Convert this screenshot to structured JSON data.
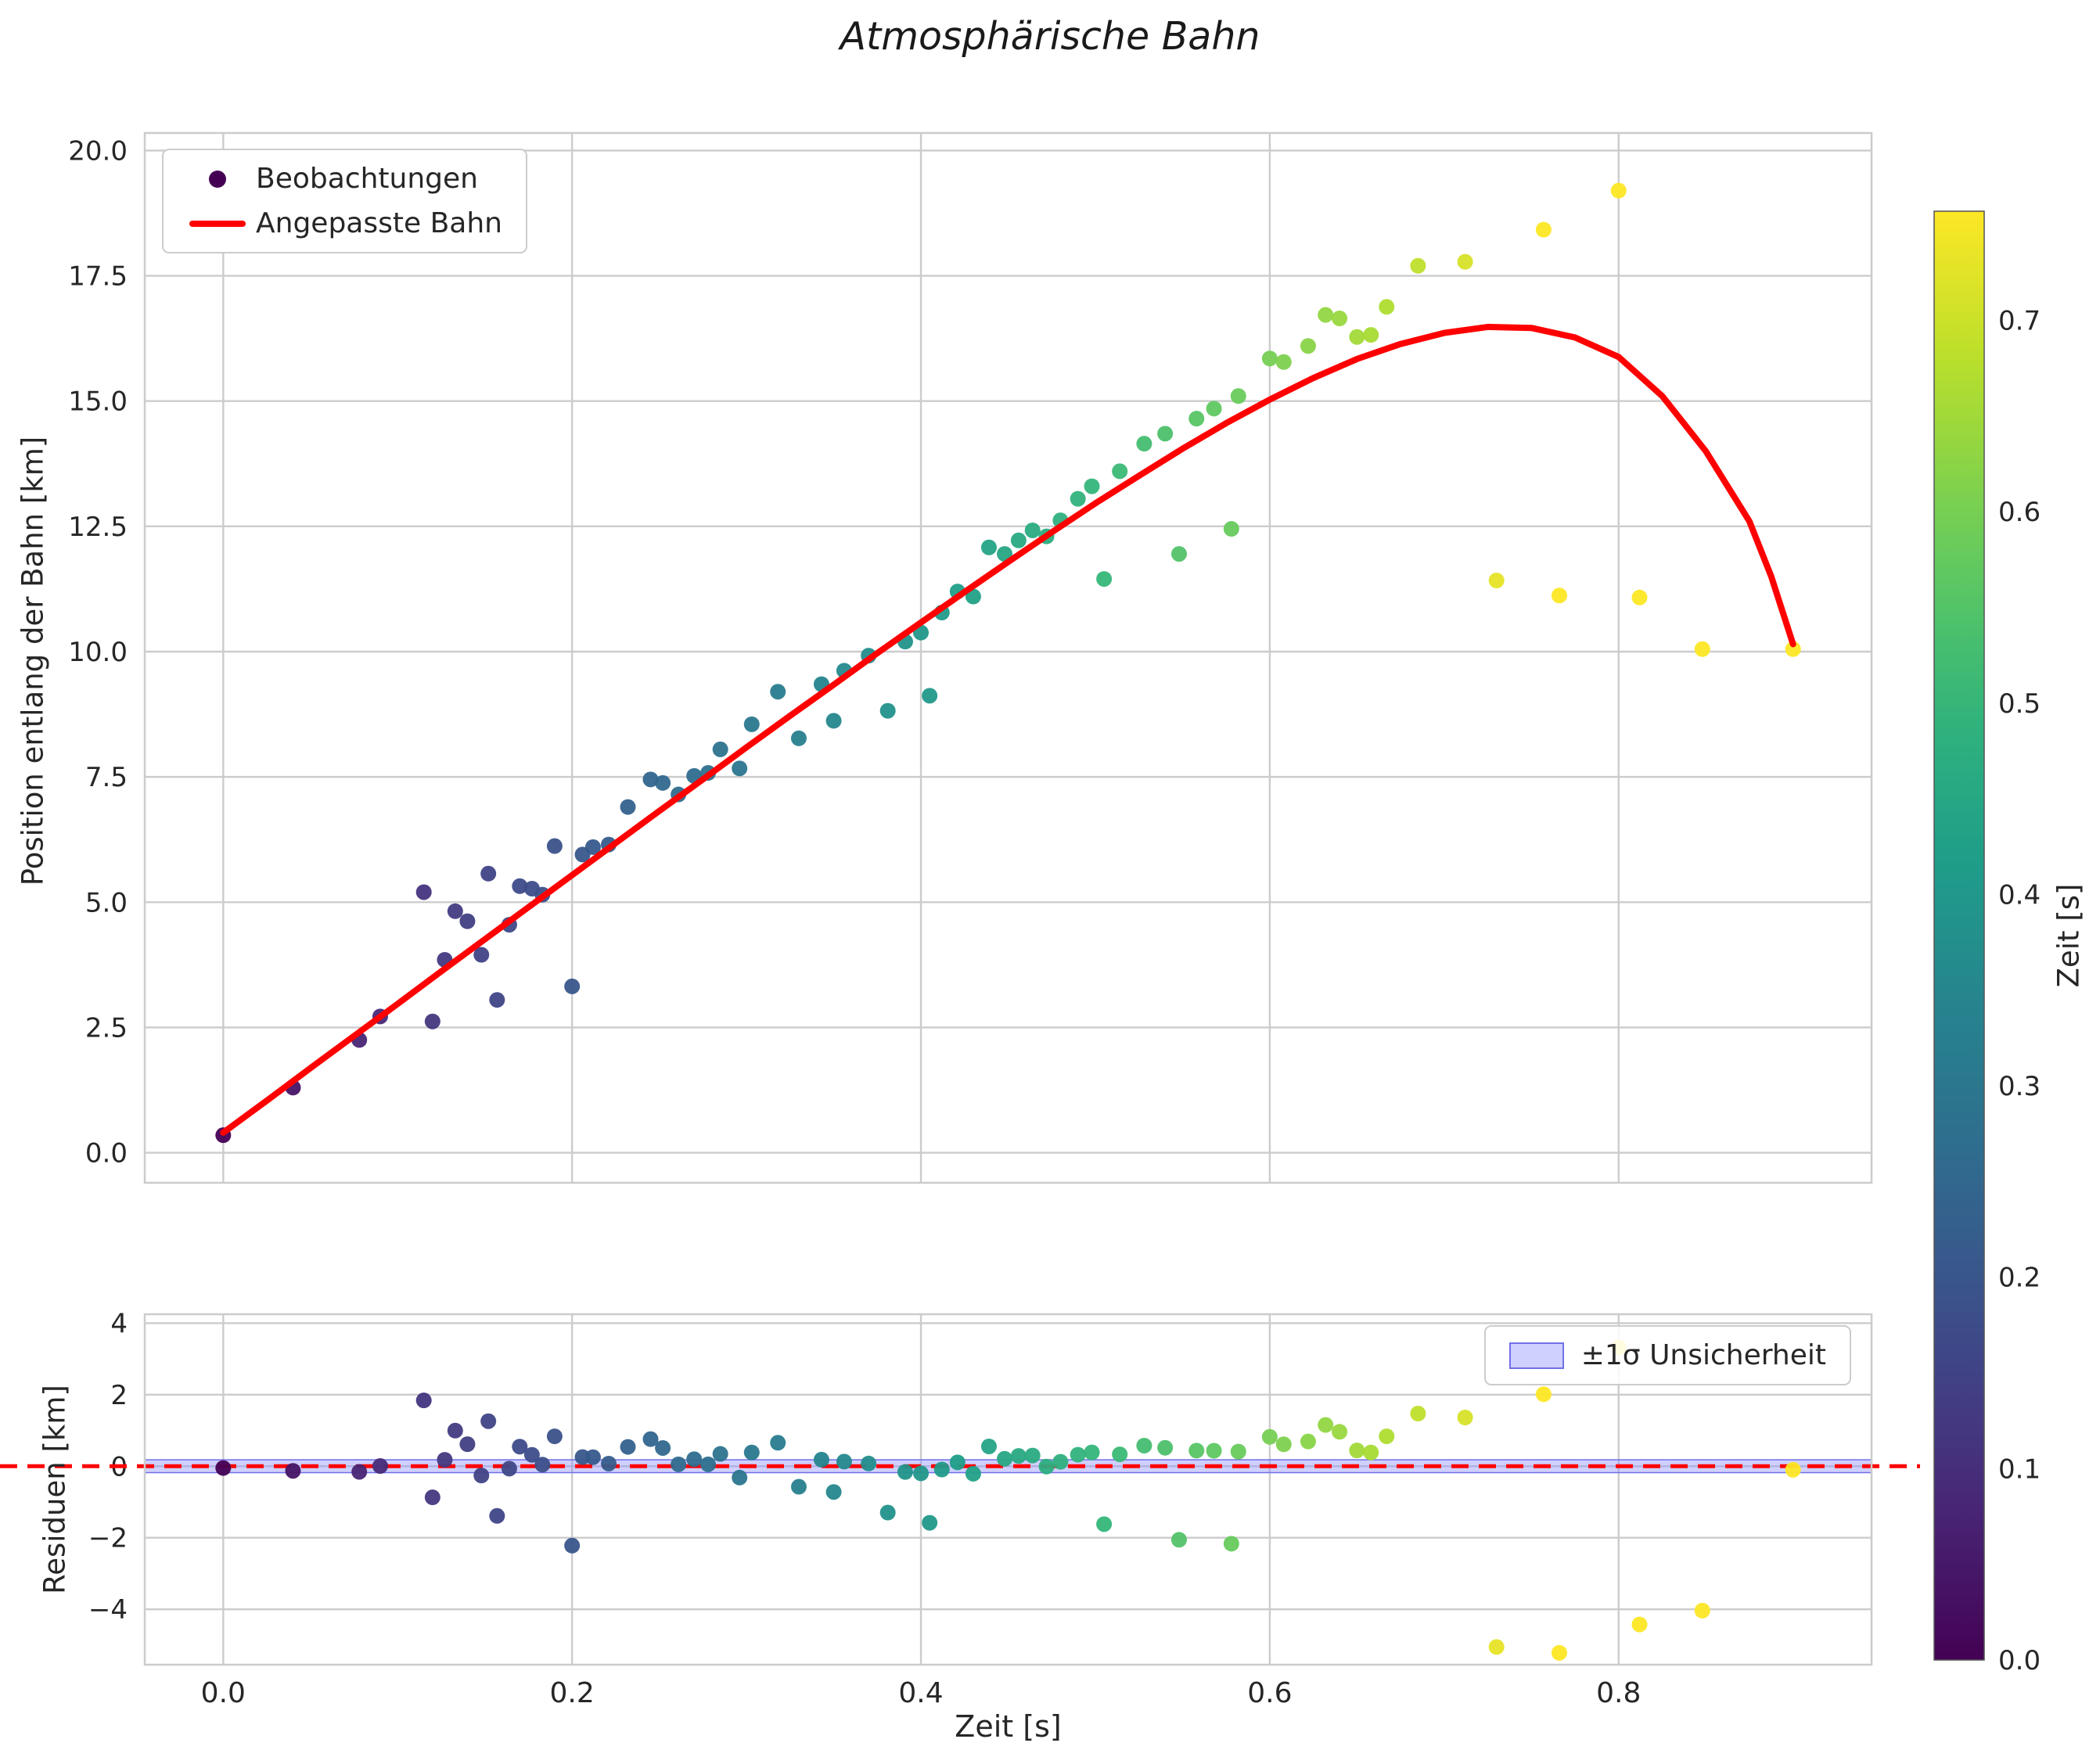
{
  "title": "Atmosphärische Bahn",
  "colors": {
    "fit_line": "#ff0000",
    "zero_line": "#ff0000",
    "grid": "#cccccc",
    "spine": "#cccccc",
    "text": "#262626",
    "title_text": "#1a1a1a",
    "observation_marker": "#440154",
    "band_fill_rgba": "rgba(132,132,255,0.38)",
    "band_edge": "#7070e8",
    "colorbar_outline": "#555555"
  },
  "chart_data": [
    {
      "id": "trajectory",
      "type": "scatter",
      "title": "Atmosphärische Bahn",
      "xlabel": "Zeit [s]",
      "ylabel": "Position entlang der Bahn [km]",
      "xlim": [
        -0.045,
        0.945
      ],
      "ylim": [
        -0.6,
        20.35
      ],
      "xticks": [
        0.0,
        0.2,
        0.4,
        0.6,
        0.8
      ],
      "xtick_labels": [
        "0.0",
        "0.2",
        "0.4",
        "0.6",
        "0.8"
      ],
      "yticks": [
        0.0,
        2.5,
        5.0,
        7.5,
        10.0,
        12.5,
        15.0,
        17.5,
        20.0
      ],
      "ytick_labels": [
        "0.0",
        "2.5",
        "5.0",
        "7.5",
        "10.0",
        "12.5",
        "15.0",
        "17.5",
        "20.0"
      ],
      "grid": true,
      "legend": [
        {
          "label": "Beobachtungen",
          "marker": "dot"
        },
        {
          "label": "Angepasste Bahn",
          "marker": "line"
        }
      ],
      "legend_position": "upper left",
      "points": [
        [
          0.0,
          0.35
        ],
        [
          0.04,
          1.3
        ],
        [
          0.078,
          2.25
        ],
        [
          0.09,
          2.72
        ],
        [
          0.115,
          5.2
        ],
        [
          0.12,
          2.62
        ],
        [
          0.127,
          3.85
        ],
        [
          0.133,
          4.82
        ],
        [
          0.14,
          4.62
        ],
        [
          0.148,
          3.95
        ],
        [
          0.152,
          5.57
        ],
        [
          0.157,
          3.05
        ],
        [
          0.164,
          4.55
        ],
        [
          0.17,
          5.32
        ],
        [
          0.177,
          5.27
        ],
        [
          0.183,
          5.15
        ],
        [
          0.19,
          6.12
        ],
        [
          0.2,
          3.32
        ],
        [
          0.206,
          5.95
        ],
        [
          0.212,
          6.1
        ],
        [
          0.221,
          6.15
        ],
        [
          0.232,
          6.9
        ],
        [
          0.245,
          7.45
        ],
        [
          0.252,
          7.38
        ],
        [
          0.261,
          7.15
        ],
        [
          0.27,
          7.52
        ],
        [
          0.278,
          7.58
        ],
        [
          0.285,
          8.05
        ],
        [
          0.296,
          7.67
        ],
        [
          0.303,
          8.55
        ],
        [
          0.318,
          9.2
        ],
        [
          0.33,
          8.27
        ],
        [
          0.343,
          9.35
        ],
        [
          0.35,
          8.62
        ],
        [
          0.356,
          9.62
        ],
        [
          0.37,
          9.92
        ],
        [
          0.381,
          8.82
        ],
        [
          0.391,
          10.2
        ],
        [
          0.4,
          10.38
        ],
        [
          0.405,
          9.12
        ],
        [
          0.412,
          10.78
        ],
        [
          0.421,
          11.2
        ],
        [
          0.43,
          11.1
        ],
        [
          0.439,
          12.08
        ],
        [
          0.448,
          11.95
        ],
        [
          0.456,
          12.22
        ],
        [
          0.464,
          12.42
        ],
        [
          0.472,
          12.3
        ],
        [
          0.48,
          12.62
        ],
        [
          0.49,
          13.05
        ],
        [
          0.498,
          13.3
        ],
        [
          0.505,
          11.45
        ],
        [
          0.514,
          13.6
        ],
        [
          0.528,
          14.15
        ],
        [
          0.54,
          14.35
        ],
        [
          0.548,
          11.95
        ],
        [
          0.558,
          14.65
        ],
        [
          0.568,
          14.85
        ],
        [
          0.578,
          12.45
        ],
        [
          0.582,
          15.1
        ],
        [
          0.6,
          15.85
        ],
        [
          0.608,
          15.78
        ],
        [
          0.622,
          16.1
        ],
        [
          0.632,
          16.72
        ],
        [
          0.64,
          16.65
        ],
        [
          0.65,
          16.28
        ],
        [
          0.658,
          16.32
        ],
        [
          0.667,
          16.88
        ],
        [
          0.685,
          17.7
        ],
        [
          0.712,
          17.78
        ],
        [
          0.73,
          11.42
        ],
        [
          0.757,
          18.42
        ],
        [
          0.766,
          11.12
        ],
        [
          0.8,
          19.2
        ],
        [
          0.812,
          11.08
        ],
        [
          0.848,
          10.05
        ],
        [
          0.9,
          10.05
        ]
      ],
      "fit_curve": [
        [
          0.0,
          0.4
        ],
        [
          0.025,
          1.04
        ],
        [
          0.05,
          1.69
        ],
        [
          0.075,
          2.33
        ],
        [
          0.1,
          2.97
        ],
        [
          0.125,
          3.62
        ],
        [
          0.15,
          4.26
        ],
        [
          0.175,
          4.9
        ],
        [
          0.2,
          5.54
        ],
        [
          0.225,
          6.18
        ],
        [
          0.25,
          6.82
        ],
        [
          0.275,
          7.45
        ],
        [
          0.3,
          8.09
        ],
        [
          0.325,
          8.72
        ],
        [
          0.35,
          9.34
        ],
        [
          0.375,
          9.97
        ],
        [
          0.4,
          10.58
        ],
        [
          0.425,
          11.19
        ],
        [
          0.45,
          11.79
        ],
        [
          0.475,
          12.38
        ],
        [
          0.5,
          12.96
        ],
        [
          0.525,
          13.51
        ],
        [
          0.55,
          14.05
        ],
        [
          0.575,
          14.56
        ],
        [
          0.6,
          15.03
        ],
        [
          0.625,
          15.46
        ],
        [
          0.65,
          15.84
        ],
        [
          0.675,
          16.14
        ],
        [
          0.7,
          16.36
        ],
        [
          0.725,
          16.48
        ],
        [
          0.75,
          16.46
        ],
        [
          0.775,
          16.27
        ],
        [
          0.8,
          15.88
        ],
        [
          0.825,
          15.1
        ],
        [
          0.85,
          14.0
        ],
        [
          0.875,
          12.6
        ],
        [
          0.8875,
          11.5
        ],
        [
          0.9,
          10.15
        ]
      ]
    },
    {
      "id": "residuals",
      "type": "scatter",
      "ylabel": "Residuen [km]",
      "xlim": [
        -0.045,
        0.945
      ],
      "ylim": [
        -5.55,
        4.25
      ],
      "xticks": [
        0.0,
        0.2,
        0.4,
        0.6,
        0.8
      ],
      "xtick_labels": [
        "0.0",
        "0.2",
        "0.4",
        "0.6",
        "0.8"
      ],
      "yticks": [
        -4,
        -2,
        0,
        2,
        4
      ],
      "ytick_labels": [
        "−4",
        "−2",
        "0",
        "2",
        "4"
      ],
      "grid": true,
      "zero_line": 0,
      "points_derived_from": "trajectory.points minus trajectory.fit_curve",
      "band": {
        "label": "±1σ Unsicherheit",
        "halfwidth": 0.18
      },
      "legend_position": "upper right"
    },
    {
      "id": "colorbar",
      "label": "Zeit [s]",
      "colormap": "viridis",
      "vmin": 0.0,
      "vmax": 0.757,
      "ticks": [
        0.0,
        0.1,
        0.2,
        0.3,
        0.4,
        0.5,
        0.6,
        0.7
      ],
      "tick_labels": [
        "0.0",
        "0.1",
        "0.2",
        "0.3",
        "0.4",
        "0.5",
        "0.6",
        "0.7"
      ]
    }
  ]
}
